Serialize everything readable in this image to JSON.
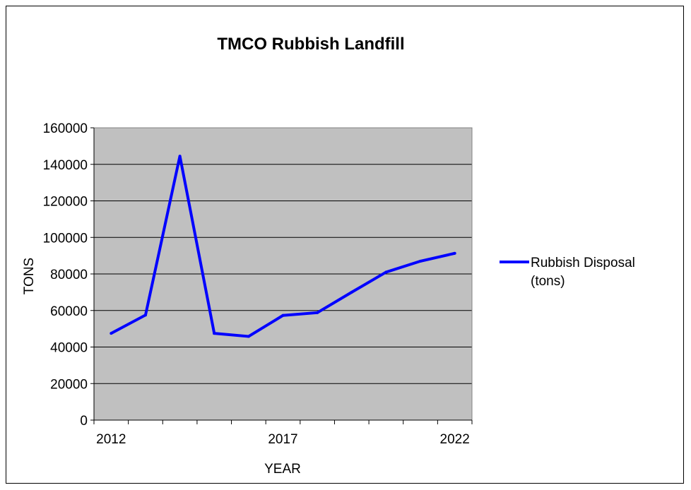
{
  "chart_data": {
    "type": "line",
    "title": "TMCO Rubbish Landfill",
    "xlabel": "YEAR",
    "ylabel": "TONS",
    "ylim": [
      0,
      160000
    ],
    "xlim": [
      2012,
      2022
    ],
    "y_ticks": [
      "0",
      "20000",
      "40000",
      "60000",
      "80000",
      "100000",
      "120000",
      "140000",
      "160000"
    ],
    "x_tick_labels": [
      "2012",
      "2017",
      "2022"
    ],
    "grid": "horizontal",
    "plot_background": "#c0c0c0",
    "legend_position": "right",
    "series": [
      {
        "name": "Rubbish Disposal (tons)",
        "legend_lines": [
          "Rubbish Disposal",
          "(tons)"
        ],
        "color": "#0000ff",
        "x": [
          2012,
          2013,
          2014,
          2015,
          2016,
          2017,
          2018,
          2019,
          2020,
          2021,
          2022
        ],
        "values": [
          47500,
          57500,
          144500,
          47500,
          45800,
          57300,
          58800,
          70000,
          81000,
          87000,
          91300
        ]
      }
    ]
  }
}
